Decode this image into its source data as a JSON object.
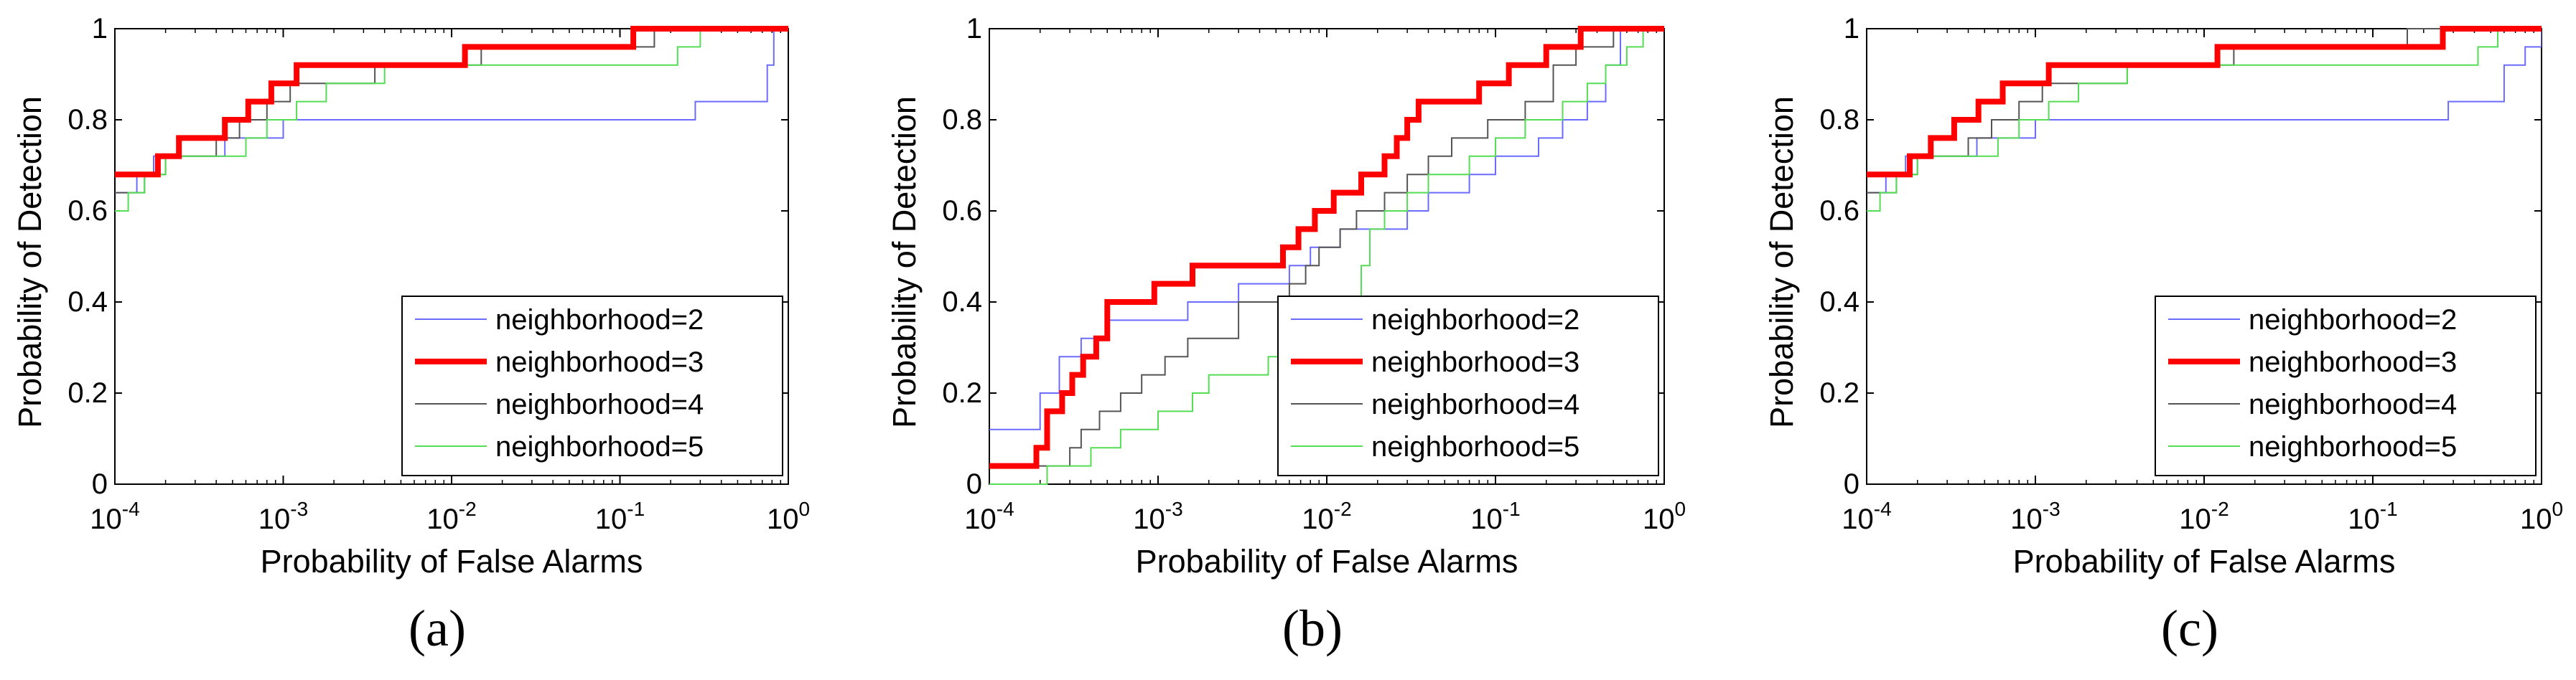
{
  "chart_data": [
    {
      "type": "line",
      "panel_label": "(a)",
      "xlabel": "Probability of False Alarms",
      "ylabel": "Probability of Detection",
      "xscale": "log",
      "xlim": [
        0.0001,
        1
      ],
      "ylim": [
        0,
        1
      ],
      "xticks": [
        {
          "base": "10",
          "exp": "-4"
        },
        {
          "base": "10",
          "exp": "-3"
        },
        {
          "base": "10",
          "exp": "-2"
        },
        {
          "base": "10",
          "exp": "-1"
        },
        {
          "base": "10",
          "exp": "0"
        }
      ],
      "yticks": [
        "0",
        "0.2",
        "0.4",
        "0.6",
        "0.8",
        "1"
      ],
      "legend_position": "lower-right",
      "series": [
        {
          "name": "neighborhood=2",
          "color": "#6b6bff",
          "width": "thin",
          "x": [
            0.0001,
            0.000135,
            0.00017,
            0.00022,
            0.0003,
            0.00045,
            0.0007,
            0.001,
            0.0015,
            0.28,
            0.35,
            0.5,
            0.75,
            0.82,
            1
          ],
          "y": [
            0.64,
            0.68,
            0.72,
            0.72,
            0.72,
            0.76,
            0.76,
            0.8,
            0.8,
            0.84,
            0.84,
            0.84,
            0.92,
            1,
            1
          ]
        },
        {
          "name": "neighborhood=3",
          "color": "#ff0000",
          "width": "thick",
          "x": [
            0.0001,
            0.00018,
            0.00024,
            0.00032,
            0.00045,
            0.00062,
            0.00085,
            0.0012,
            0.0025,
            0.0055,
            0.012,
            0.045,
            0.12,
            1
          ],
          "y": [
            0.68,
            0.72,
            0.76,
            0.76,
            0.8,
            0.84,
            0.88,
            0.92,
            0.92,
            0.92,
            0.96,
            0.96,
            1,
            1
          ]
        },
        {
          "name": "neighborhood=4",
          "color": "#555555",
          "width": "thin",
          "x": [
            0.0001,
            0.00015,
            0.0002,
            0.00028,
            0.0004,
            0.00055,
            0.0008,
            0.0011,
            0.0016,
            0.0035,
            0.015,
            0.08,
            0.16,
            1
          ],
          "y": [
            0.64,
            0.68,
            0.72,
            0.72,
            0.76,
            0.8,
            0.84,
            0.88,
            0.88,
            0.92,
            0.96,
            0.96,
            1,
            1
          ]
        },
        {
          "name": "neighborhood=5",
          "color": "#55dd55",
          "width": "thin",
          "x": [
            0.0001,
            0.00012,
            0.00015,
            0.0002,
            0.0003,
            0.00045,
            0.0006,
            0.0008,
            0.0012,
            0.0018,
            0.004,
            0.12,
            0.22,
            0.3,
            1
          ],
          "y": [
            0.6,
            0.64,
            0.68,
            0.72,
            0.72,
            0.72,
            0.76,
            0.8,
            0.84,
            0.88,
            0.92,
            0.92,
            0.96,
            1,
            1
          ]
        }
      ]
    },
    {
      "type": "line",
      "panel_label": "(b)",
      "xlabel": "Probability of False Alarms",
      "ylabel": "Probability of Detection",
      "xscale": "log",
      "xlim": [
        0.0001,
        1
      ],
      "ylim": [
        0,
        1
      ],
      "xticks": [
        {
          "base": "10",
          "exp": "-4"
        },
        {
          "base": "10",
          "exp": "-3"
        },
        {
          "base": "10",
          "exp": "-2"
        },
        {
          "base": "10",
          "exp": "-1"
        },
        {
          "base": "10",
          "exp": "0"
        }
      ],
      "yticks": [
        "0",
        "0.2",
        "0.4",
        "0.6",
        "0.8",
        "1"
      ],
      "legend_position": "lower-right",
      "series": [
        {
          "name": "neighborhood=2",
          "color": "#6b6bff",
          "width": "thin",
          "x": [
            0.0001,
            0.0002,
            0.00026,
            0.00035,
            0.0005,
            0.0008,
            0.0015,
            0.003,
            0.006,
            0.008,
            0.012,
            0.02,
            0.03,
            0.04,
            0.05,
            0.07,
            0.1,
            0.18,
            0.25,
            0.35,
            0.45,
            0.55,
            1
          ],
          "y": [
            0.12,
            0.2,
            0.28,
            0.32,
            0.36,
            0.36,
            0.4,
            0.44,
            0.48,
            0.52,
            0.56,
            0.56,
            0.6,
            0.64,
            0.64,
            0.68,
            0.72,
            0.76,
            0.8,
            0.84,
            0.92,
            1,
            1
          ]
        },
        {
          "name": "neighborhood=3",
          "color": "#ff0000",
          "width": "thick",
          "x": [
            0.0001,
            0.00019,
            0.00022,
            0.00027,
            0.00031,
            0.00036,
            0.00043,
            0.0005,
            0.00095,
            0.0016,
            0.0025,
            0.0055,
            0.0068,
            0.0085,
            0.011,
            0.016,
            0.022,
            0.026,
            0.03,
            0.035,
            0.045,
            0.08,
            0.12,
            0.2,
            0.32,
            0.48,
            1
          ],
          "y": [
            0.04,
            0.08,
            0.16,
            0.2,
            0.24,
            0.28,
            0.32,
            0.4,
            0.44,
            0.48,
            0.48,
            0.52,
            0.56,
            0.6,
            0.64,
            0.68,
            0.72,
            0.76,
            0.8,
            0.84,
            0.84,
            0.88,
            0.92,
            0.96,
            1,
            1,
            1
          ]
        },
        {
          "name": "neighborhood=4",
          "color": "#555555",
          "width": "thin",
          "x": [
            0.0001,
            0.0003,
            0.00035,
            0.00045,
            0.0006,
            0.0008,
            0.0011,
            0.0015,
            0.003,
            0.006,
            0.0075,
            0.009,
            0.012,
            0.015,
            0.022,
            0.03,
            0.04,
            0.055,
            0.09,
            0.15,
            0.22,
            0.3,
            0.42,
            0.5,
            1
          ],
          "y": [
            0.04,
            0.08,
            0.12,
            0.16,
            0.2,
            0.24,
            0.28,
            0.32,
            0.4,
            0.44,
            0.48,
            0.52,
            0.56,
            0.6,
            0.64,
            0.68,
            0.72,
            0.76,
            0.8,
            0.84,
            0.92,
            0.96,
            0.96,
            1,
            1
          ]
        },
        {
          "name": "neighborhood=5",
          "color": "#55dd55",
          "width": "thin",
          "x": [
            0.0001,
            0.00022,
            0.0004,
            0.0006,
            0.001,
            0.0016,
            0.002,
            0.0045,
            0.006,
            0.009,
            0.014,
            0.016,
            0.018,
            0.022,
            0.03,
            0.04,
            0.07,
            0.1,
            0.15,
            0.25,
            0.35,
            0.45,
            0.6,
            0.75,
            1
          ],
          "y": [
            0,
            0.04,
            0.08,
            0.12,
            0.16,
            0.2,
            0.24,
            0.28,
            0.32,
            0.36,
            0.4,
            0.48,
            0.56,
            0.6,
            0.64,
            0.68,
            0.72,
            0.76,
            0.8,
            0.84,
            0.88,
            0.92,
            0.96,
            1,
            1
          ]
        }
      ]
    },
    {
      "type": "line",
      "panel_label": "(c)",
      "xlabel": "Probability of False Alarms",
      "ylabel": "Probability of Detection",
      "xscale": "log",
      "xlim": [
        0.0001,
        1
      ],
      "ylim": [
        0,
        1
      ],
      "xticks": [
        {
          "base": "10",
          "exp": "-4"
        },
        {
          "base": "10",
          "exp": "-3"
        },
        {
          "base": "10",
          "exp": "-2"
        },
        {
          "base": "10",
          "exp": "-1"
        },
        {
          "base": "10",
          "exp": "0"
        }
      ],
      "yticks": [
        "0",
        "0.2",
        "0.4",
        "0.6",
        "0.8",
        "1"
      ],
      "legend_position": "lower-right",
      "series": [
        {
          "name": "neighborhood=2",
          "color": "#6b6bff",
          "width": "thin",
          "x": [
            0.0001,
            0.00013,
            0.00017,
            0.00023,
            0.0003,
            0.00045,
            0.0007,
            0.001,
            0.0015,
            0.28,
            0.4,
            0.6,
            0.8,
            1
          ],
          "y": [
            0.64,
            0.68,
            0.72,
            0.72,
            0.72,
            0.76,
            0.76,
            0.8,
            0.8,
            0.84,
            0.84,
            0.92,
            0.96,
            1
          ]
        },
        {
          "name": "neighborhood=3",
          "color": "#ff0000",
          "width": "thick",
          "x": [
            0.0001,
            0.00018,
            0.00024,
            0.00033,
            0.00046,
            0.00064,
            0.00087,
            0.0012,
            0.0026,
            0.012,
            0.26,
            1
          ],
          "y": [
            0.68,
            0.72,
            0.76,
            0.8,
            0.84,
            0.88,
            0.88,
            0.92,
            0.92,
            0.96,
            1,
            1
          ]
        },
        {
          "name": "neighborhood=4",
          "color": "#555555",
          "width": "thin",
          "x": [
            0.0001,
            0.00015,
            0.0002,
            0.00028,
            0.0004,
            0.00055,
            0.0008,
            0.0011,
            0.0016,
            0.0035,
            0.015,
            0.08,
            0.16,
            1
          ],
          "y": [
            0.64,
            0.68,
            0.72,
            0.72,
            0.76,
            0.8,
            0.84,
            0.88,
            0.88,
            0.92,
            0.96,
            0.96,
            1,
            1
          ]
        },
        {
          "name": "neighborhood=5",
          "color": "#55dd55",
          "width": "thin",
          "x": [
            0.0001,
            0.00012,
            0.00015,
            0.0002,
            0.0003,
            0.00045,
            0.0006,
            0.0008,
            0.0012,
            0.0018,
            0.0035,
            0.3,
            0.42,
            0.55,
            1
          ],
          "y": [
            0.6,
            0.64,
            0.68,
            0.72,
            0.72,
            0.72,
            0.76,
            0.8,
            0.84,
            0.88,
            0.92,
            0.92,
            0.96,
            1,
            1
          ]
        }
      ]
    }
  ]
}
